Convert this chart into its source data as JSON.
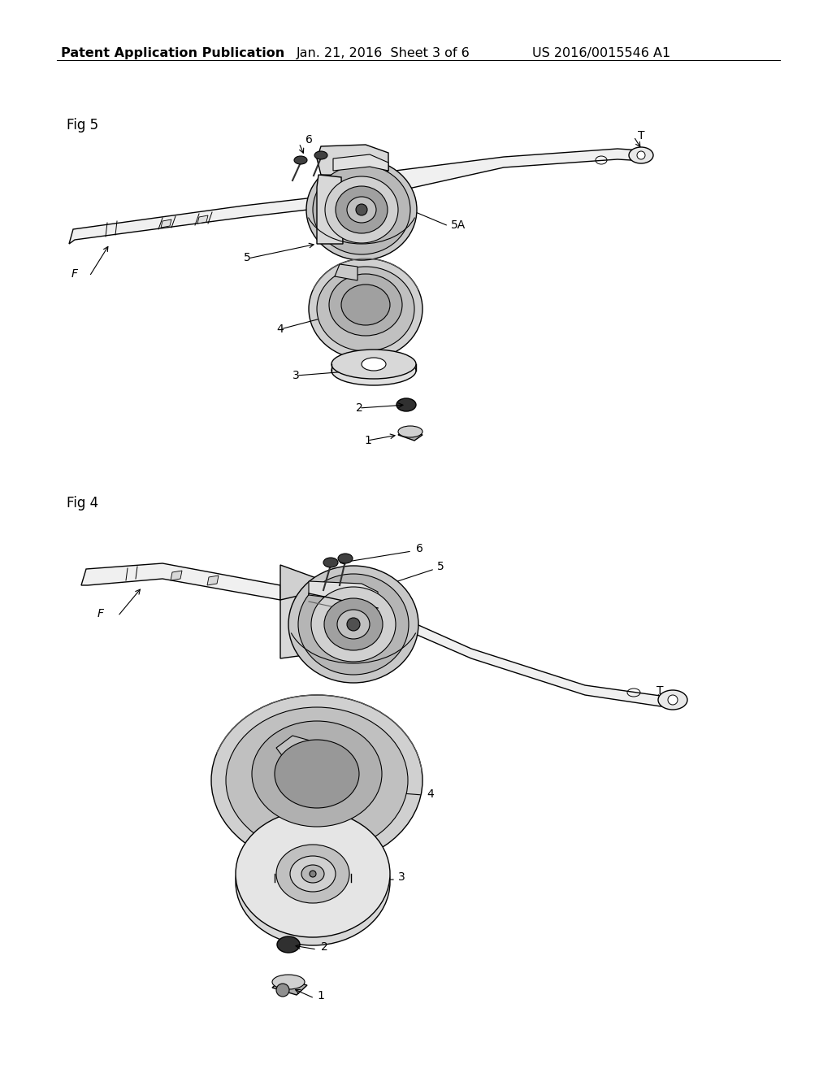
{
  "background_color": "#ffffff",
  "header_text": "Patent Application Publication",
  "header_date": "Jan. 21, 2016  Sheet 3 of 6",
  "header_patent": "US 2016/0015546 A1",
  "header_font_size": 11.5,
  "fig5_label": "Fig 5",
  "fig4_label": "Fig 4",
  "line_color": "#000000",
  "figsize": [
    10.24,
    13.2
  ],
  "dpi": 100
}
